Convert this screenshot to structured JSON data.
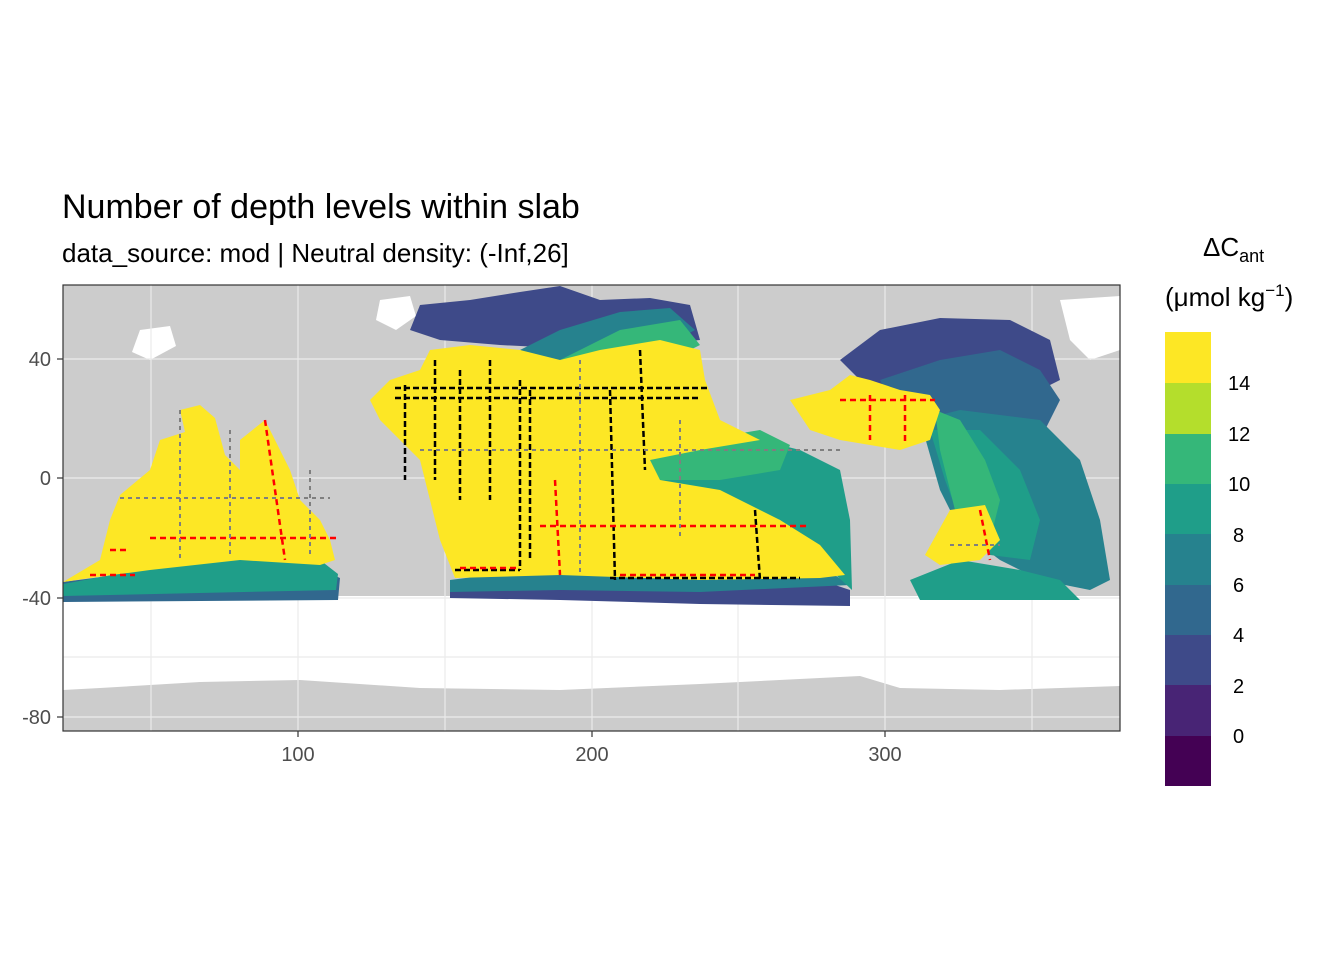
{
  "title": "Number of depth levels within slab",
  "subtitle": "data_source: mod | Neutral density: (-Inf,26]",
  "legend": {
    "title_symbol": "ΔC",
    "title_subscript": "ant",
    "unit_open": "(μmol kg",
    "unit_exp": "−1",
    "unit_close": ")",
    "ticks": [
      "14",
      "12",
      "10",
      "8",
      "6",
      "4",
      "2",
      "0"
    ]
  },
  "colors": {
    "land": "#cccccc",
    "no_data": "#ffffff",
    "grid": "#ebebeb",
    "panel_border": "#333333",
    "track_black": "#000000",
    "track_red": "#ff0000",
    "track_grey": "#7f7f7f",
    "scale": [
      "#440154",
      "#482475",
      "#3e4a89",
      "#31688e",
      "#26828e",
      "#1f9e89",
      "#35b779",
      "#6dcd59",
      "#b4de2c",
      "#fde725"
    ]
  },
  "chart_data": {
    "type": "heatmap",
    "x_ticks": [
      "100",
      "200",
      "300"
    ],
    "y_ticks": [
      "40",
      "0",
      "-40",
      "-80"
    ],
    "xlim": [
      20,
      380
    ],
    "ylim": [
      -85,
      65
    ],
    "legend_range": [
      -2,
      16
    ],
    "legend_placement": "right",
    "grid": true
  }
}
